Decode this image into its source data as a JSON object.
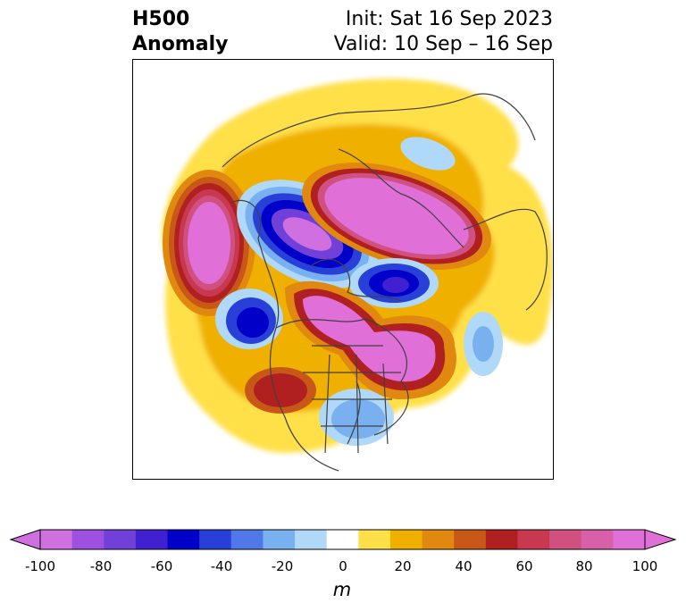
{
  "header": {
    "title_line1": "H500",
    "title_line2": "Anomaly",
    "init_text": "Init: Sat 16 Sep 2023",
    "valid_text": "Valid: 10 Sep – 16 Sep"
  },
  "colorbar": {
    "unit": "m",
    "tick_labels": [
      "-100",
      "-80",
      "-60",
      "-40",
      "-20",
      "0",
      "20",
      "40",
      "60",
      "80",
      "100"
    ],
    "colors": [
      "#d070e0",
      "#a050e0",
      "#7040d8",
      "#4020d0",
      "#0000c8",
      "#2840d8",
      "#5078e8",
      "#78b0f0",
      "#b0d8f8",
      "#ffffff",
      "#ffe04a",
      "#f0b000",
      "#e08810",
      "#c85818",
      "#b02020",
      "#c83850",
      "#d05080",
      "#d860a8",
      "#e070d8"
    ]
  },
  "map": {
    "region": "North America / Arctic",
    "anomaly_centers": [
      {
        "name": "pacific-ridge",
        "sign": "positive",
        "approx_m": 100
      },
      {
        "name": "alaska-trough",
        "sign": "negative",
        "approx_m": -80
      },
      {
        "name": "greenland-ridge",
        "sign": "positive",
        "approx_m": 100
      },
      {
        "name": "labrador-ridge",
        "sign": "positive",
        "approx_m": 100
      },
      {
        "name": "baffin-trough",
        "sign": "negative",
        "approx_m": -80
      },
      {
        "name": "gulf-of-alaska-trough",
        "sign": "negative",
        "approx_m": -80
      },
      {
        "name": "eastern-us-trough",
        "sign": "negative",
        "approx_m": -40
      },
      {
        "name": "western-us-ridge",
        "sign": "positive",
        "approx_m": 60
      }
    ]
  }
}
